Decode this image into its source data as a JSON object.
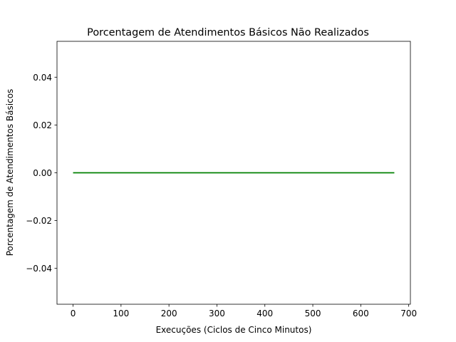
{
  "chart_data": {
    "type": "line",
    "title": "Porcentagem de Atendimentos Básicos Não Realizados",
    "xlabel": "Execuções (Ciclos de Cinco Minutos)",
    "ylabel": "Porcentagem de Atendimentos Básicos",
    "xlim": [
      -33.5,
      703.5
    ],
    "ylim": [
      -0.055,
      0.055
    ],
    "x_ticks": [
      0,
      100,
      200,
      300,
      400,
      500,
      600,
      700
    ],
    "x_tick_labels": [
      "0",
      "100",
      "200",
      "300",
      "400",
      "500",
      "600",
      "700"
    ],
    "y_ticks": [
      -0.04,
      -0.02,
      0.0,
      0.02,
      0.04
    ],
    "y_tick_labels": [
      "−0.04",
      "−0.02",
      "0.00",
      "0.02",
      "0.04"
    ],
    "grid": false,
    "legend": "none",
    "series": [
      {
        "color": "#008000",
        "x": [
          0,
          670
        ],
        "y": [
          0,
          0
        ]
      }
    ]
  }
}
